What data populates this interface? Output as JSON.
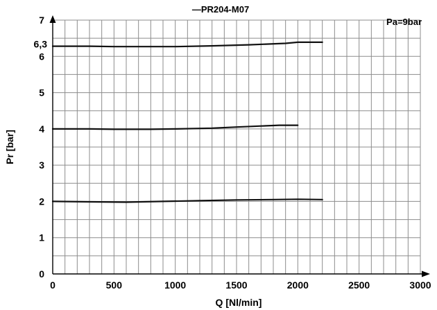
{
  "chart_data": {
    "type": "line",
    "title": "PR204-M07",
    "title_marker": "—",
    "annotation": "Pa=9bar",
    "xlabel": "Q [Nl/min]",
    "ylabel": "Pr [bar]",
    "xlim": [
      0,
      3000
    ],
    "ylim": [
      0,
      7
    ],
    "x_ticks": [
      "0",
      "500",
      "1000",
      "1500",
      "2000",
      "2500",
      "3000"
    ],
    "y_ticks": [
      "0",
      "1",
      "2",
      "3",
      "4",
      "5",
      "6",
      "7"
    ],
    "extra_y_tick": {
      "label": "6,3",
      "value": 6.3
    },
    "grid": true,
    "x_minor_step": 100,
    "y_minor_step": 0.5,
    "series": [
      {
        "x": [
          0,
          300,
          500,
          800,
          1000,
          1300,
          1600,
          1900,
          2000,
          2200
        ],
        "y": [
          6.28,
          6.28,
          6.27,
          6.27,
          6.27,
          6.29,
          6.32,
          6.36,
          6.39,
          6.39
        ]
      },
      {
        "x": [
          0,
          300,
          500,
          800,
          1000,
          1300,
          1500,
          1700,
          1850,
          2000
        ],
        "y": [
          4.0,
          4.0,
          3.99,
          3.99,
          4.0,
          4.02,
          4.05,
          4.08,
          4.1,
          4.1
        ]
      },
      {
        "x": [
          0,
          300,
          600,
          900,
          1200,
          1500,
          1800,
          2000,
          2200
        ],
        "y": [
          2.0,
          1.99,
          1.98,
          2.0,
          2.02,
          2.04,
          2.05,
          2.06,
          2.05
        ]
      }
    ]
  }
}
